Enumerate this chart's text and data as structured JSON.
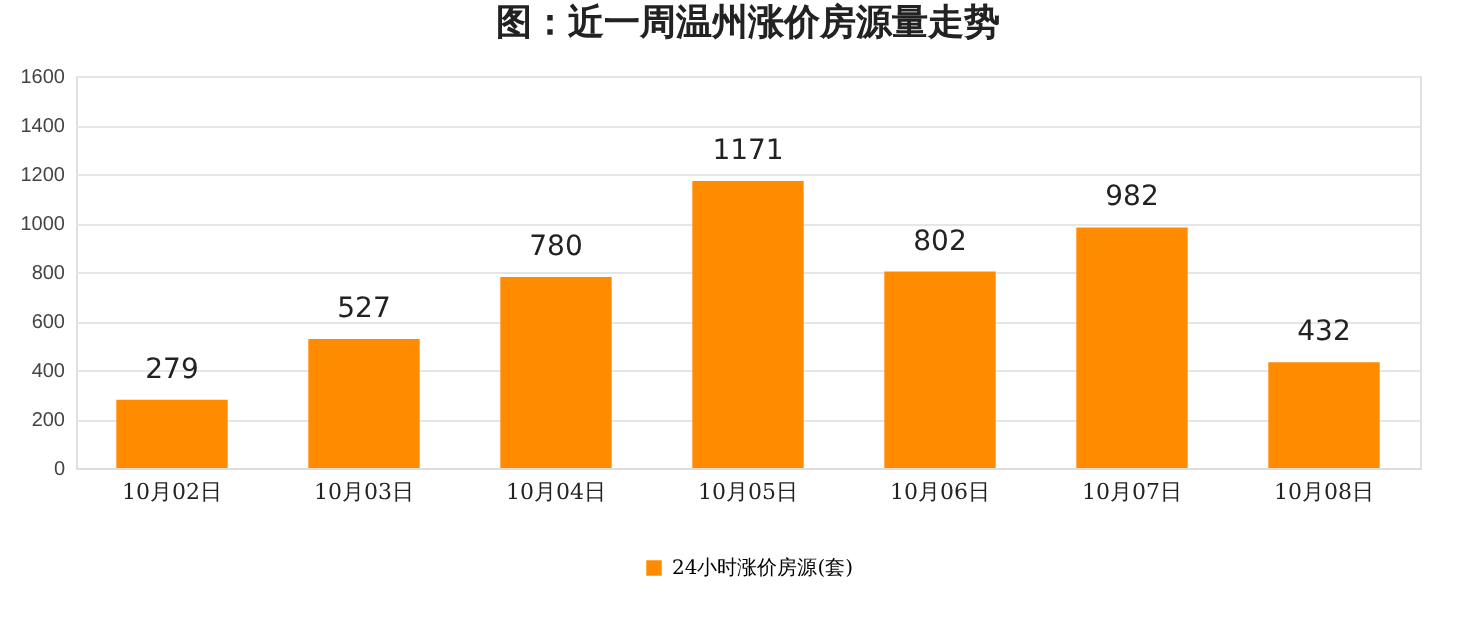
{
  "chart_data": {
    "type": "bar",
    "title": "图：近一周温州涨价房源量走势",
    "categories": [
      "10月02日",
      "10月03日",
      "10月04日",
      "10月05日",
      "10月06日",
      "10月07日",
      "10月08日"
    ],
    "series": [
      {
        "name": "24小时涨价房源(套)",
        "color": "#ff8c00",
        "values": [
          279,
          527,
          780,
          1171,
          802,
          982,
          432
        ]
      }
    ],
    "ylim": [
      0,
      1600
    ],
    "yticks": [
      0,
      200,
      400,
      600,
      800,
      1000,
      1200,
      1400,
      1600
    ],
    "grid": "y",
    "legend": "bottom",
    "data_labels": true
  }
}
